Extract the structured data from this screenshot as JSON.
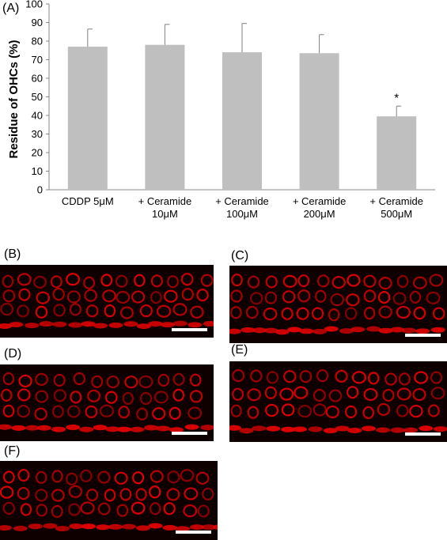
{
  "panel_labels": {
    "A": "(A)",
    "B": "(B)",
    "C": "(C)",
    "D": "(D)",
    "E": "(E)",
    "F": "(F)"
  },
  "chart_data": {
    "type": "bar",
    "title": "",
    "xlabel": "",
    "ylabel": "Residue of OHCs (%)",
    "ylim": [
      0,
      100
    ],
    "yticks": [
      0,
      10,
      20,
      30,
      40,
      50,
      60,
      70,
      80,
      90,
      100
    ],
    "categories": [
      [
        "CDDP 5μM"
      ],
      [
        "+ Ceramide",
        "10μM"
      ],
      [
        "+ Ceramide",
        "100μM"
      ],
      [
        "+ Ceramide",
        "200μM"
      ],
      [
        "+ Ceramide",
        "500μM"
      ]
    ],
    "values": [
      77,
      78,
      74,
      73.5,
      39.5
    ],
    "error_upper": [
      9.5,
      11,
      15.5,
      10,
      5.5
    ],
    "annotations": [
      "",
      "",
      "",
      "",
      "*"
    ],
    "bar_color": "#bfbfbf",
    "error_color": "#7f7f7f",
    "grid": false
  },
  "micrographs": {
    "stain_color": "#e00000",
    "background_color": "#0e0000",
    "scale_bar_color": "#ffffff"
  }
}
